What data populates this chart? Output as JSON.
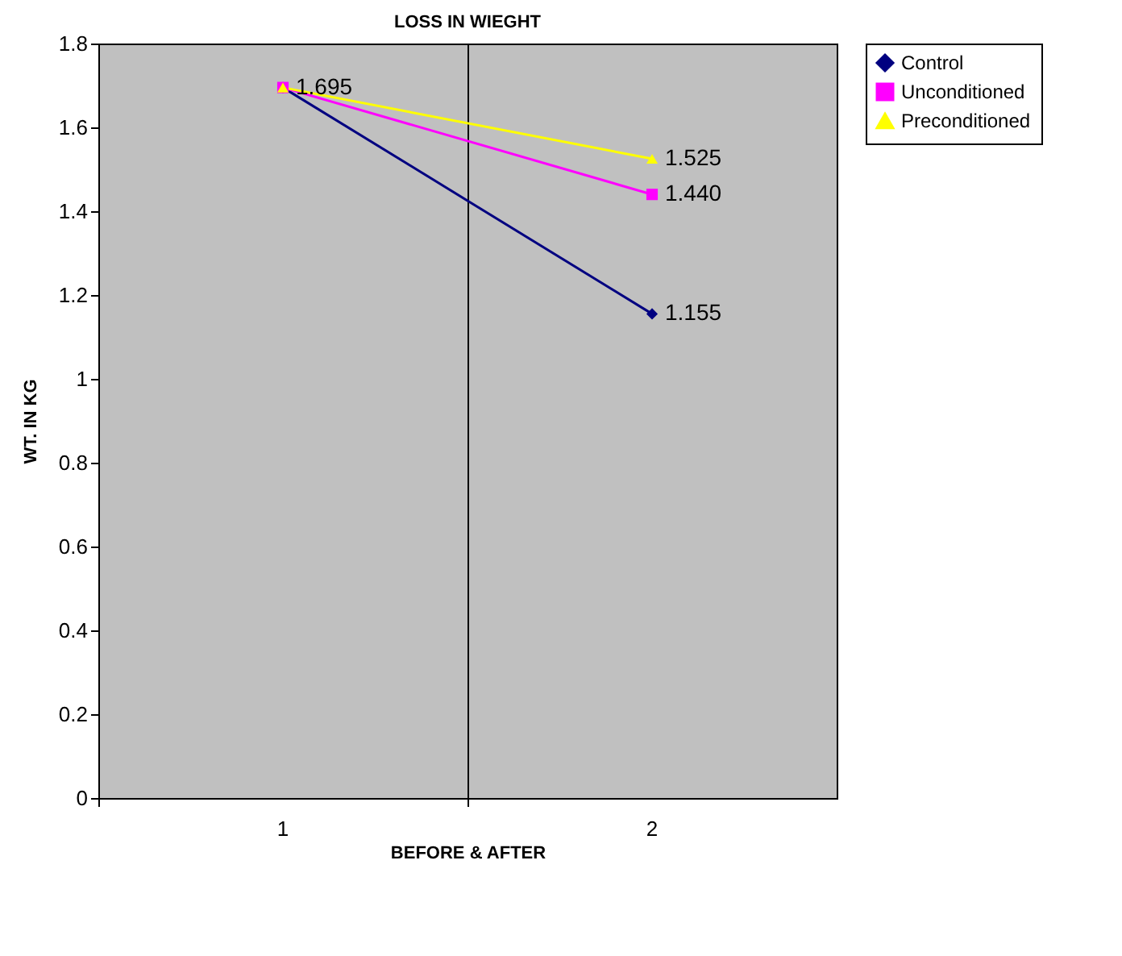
{
  "chart_data": {
    "type": "line",
    "title": "LOSS IN WIEGHT",
    "xlabel": "BEFORE & AFTER",
    "ylabel": "WT. IN KG",
    "categories": [
      "1",
      "2"
    ],
    "series": [
      {
        "name": "Control",
        "color": "#000080",
        "marker": "diamond",
        "values": [
          1.695,
          1.155
        ],
        "value_labels": [
          "1.695",
          "1.155"
        ]
      },
      {
        "name": "Unconditioned",
        "color": "#ff00ff",
        "marker": "square",
        "values": [
          1.695,
          1.44
        ],
        "value_labels": [
          null,
          "1.440"
        ]
      },
      {
        "name": "Preconditioned",
        "color": "#ffff00",
        "marker": "triangle",
        "values": [
          1.695,
          1.525
        ],
        "value_labels": [
          null,
          "1.525"
        ]
      }
    ],
    "ylim": [
      0,
      1.8
    ],
    "yticks": [
      0,
      0.2,
      0.4,
      0.6,
      0.8,
      1,
      1.2,
      1.4,
      1.6,
      1.8
    ],
    "grid": "x",
    "legend": "right"
  }
}
